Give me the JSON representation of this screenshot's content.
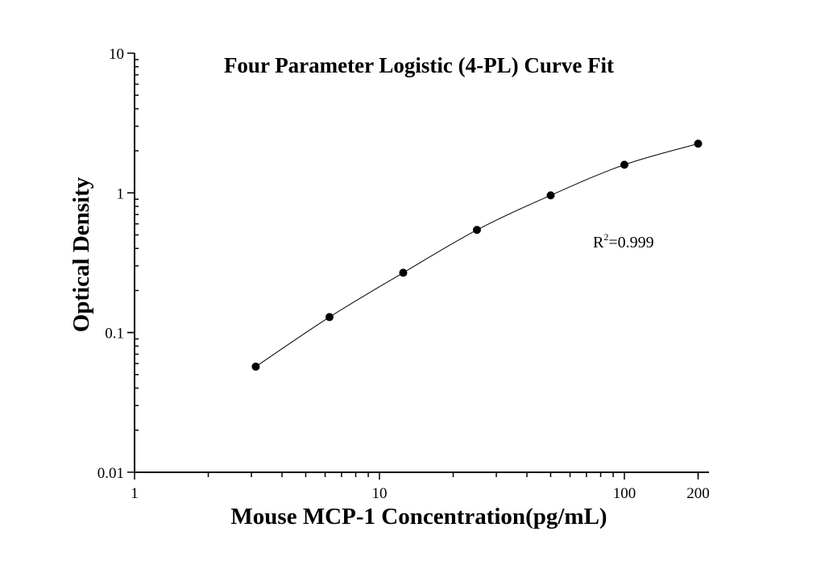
{
  "chart_data": {
    "type": "scatter",
    "title": "Four Parameter Logistic (4-PL) Curve Fit",
    "xlabel": "Mouse MCP-1 Concentration(pg/mL)",
    "ylabel": "Optical Density",
    "x_scale": "log",
    "y_scale": "log",
    "xlim": [
      1,
      240
    ],
    "ylim": [
      0.01,
      10
    ],
    "x_ticks": [
      1,
      10,
      100,
      200
    ],
    "x_tick_labels": [
      "1",
      "10",
      "100",
      "200"
    ],
    "y_ticks": [
      0.01,
      0.1,
      1,
      10
    ],
    "y_tick_labels": [
      "0.01",
      "0.1",
      "1",
      "10"
    ],
    "grid": false,
    "series": [
      {
        "x": [
          3.125,
          6.25,
          12.5,
          25,
          50,
          100,
          200
        ],
        "y": [
          0.057,
          0.129,
          0.268,
          0.543,
          0.96,
          1.59,
          2.25
        ],
        "marker": "filled-circle",
        "fit": "4-PL curve",
        "color": "#000000"
      }
    ],
    "annotations": [
      {
        "text_base": "R",
        "superscript": "2",
        "text_rest": "=0.999"
      }
    ]
  }
}
